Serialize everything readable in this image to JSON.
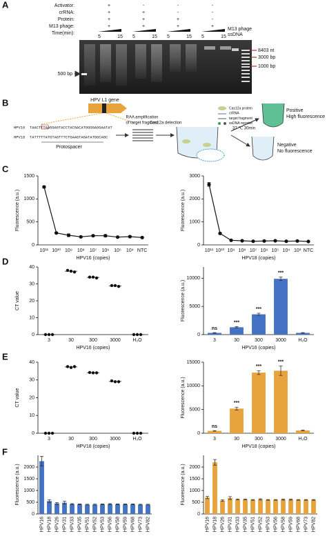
{
  "panel_labels": [
    "A",
    "B",
    "C",
    "D",
    "E",
    "F"
  ],
  "panel_a": {
    "row_labels": [
      "Activator:",
      "crRNA:",
      "Protein:",
      "M13 phage:",
      "Time(min):"
    ],
    "signs": [
      [
        "+",
        "-",
        "-",
        "-"
      ],
      [
        "+",
        "+",
        "-",
        "-"
      ],
      [
        "+",
        "+",
        "+",
        "-"
      ],
      [
        "+",
        "+",
        "+",
        "+"
      ]
    ],
    "times": [
      "5",
      "15"
    ],
    "ssdna_label": [
      "M13 phage",
      "ssDNA"
    ],
    "right_markers": [
      "8403 nt",
      "3000 bp",
      "1000 bp"
    ],
    "left_marker": "500 bp"
  },
  "panel_b": {
    "gene": "HPV L1 gene",
    "seq_names": [
      "HPV16",
      "HPV18"
    ],
    "seqs": [
      "TAACTTTAAGGAGTACCTACGACATGGGGAGGAATAT",
      "TATTTTTATGTAGTTTCTGAAGTAGATATGGCAGC"
    ],
    "protospacer": "Protospacer",
    "raa": [
      "RAA amplification",
      "of target fragment"
    ],
    "detection": "Cas12a detection",
    "legend": [
      "Cas12a protein",
      "crRNA",
      "target fragment",
      "ssDNA reporter"
    ],
    "condition": "37 ℃ 30min",
    "positive": [
      "Positive",
      "High fluorescence"
    ],
    "negative": [
      "Negative",
      "No fluorescence"
    ]
  },
  "chart_data": [
    {
      "type": "line",
      "xlabel": "HPV16 (copies)",
      "ylabel": "Fluorescence (a.u.)",
      "categories": [
        "10¹¹",
        "10¹⁰",
        "10⁹",
        "10⁸",
        "10⁷",
        "10⁶",
        "10⁵",
        "10⁴",
        "NTC"
      ],
      "values": [
        1260,
        260,
        210,
        175,
        200,
        200,
        170,
        180,
        160
      ],
      "errors": [
        20,
        15,
        30,
        10,
        15,
        25,
        10,
        15,
        10
      ],
      "color": "#111111",
      "ylim": [
        0,
        1500
      ],
      "yticks": [
        0,
        500,
        1000,
        1500
      ]
    },
    {
      "type": "line",
      "xlabel": "HPV18 (copies)",
      "ylabel": "Fluorescence (a.u.)",
      "categories": [
        "10¹¹",
        "10¹⁰",
        "10⁹",
        "10⁸",
        "10⁷",
        "10⁶",
        "10⁵",
        "10⁴",
        "10³",
        "NTC"
      ],
      "values": [
        2630,
        500,
        200,
        180,
        160,
        170,
        180,
        160,
        170,
        150
      ],
      "errors": [
        80,
        30,
        10,
        10,
        10,
        10,
        10,
        10,
        10,
        10
      ],
      "color": "#111111",
      "ylim": [
        0,
        3000
      ],
      "yticks": [
        0,
        1000,
        2000,
        3000
      ]
    },
    {
      "type": "dotplot",
      "xlabel": "HPV16 (copies)",
      "ylabel": "CT value",
      "categories": [
        "3",
        "30",
        "300",
        "3000",
        "H₂O"
      ],
      "values": [
        [
          0,
          0,
          0
        ],
        [
          38,
          37.5,
          37
        ],
        [
          34,
          34,
          33.5
        ],
        [
          29,
          29,
          28.5
        ],
        [
          0,
          0,
          0
        ]
      ],
      "color": "#111111",
      "ylim": [
        0,
        40
      ],
      "yticks": [
        0,
        10,
        20,
        30,
        40
      ]
    },
    {
      "type": "bar",
      "xlabel": "HPV16 (copies)",
      "ylabel": "Fluorescence (a.u.)",
      "categories": [
        "3",
        "30",
        "300",
        "3000",
        "H₂O"
      ],
      "values": [
        300,
        1300,
        3600,
        9900,
        300
      ],
      "errors": [
        50,
        100,
        200,
        300,
        50
      ],
      "annotations": [
        "ns",
        "***",
        "***",
        "***",
        null
      ],
      "color": "#4472c4",
      "ylim": [
        0,
        12000
      ],
      "yticks": [
        0,
        5000,
        10000
      ]
    },
    {
      "type": "dotplot",
      "xlabel": "HPV18 (copies)",
      "ylabel": "CT value",
      "categories": [
        "3",
        "30",
        "300",
        "3000",
        "H₂O"
      ],
      "values": [
        [
          0,
          0,
          0
        ],
        [
          37.5,
          37,
          37.5
        ],
        [
          34.2,
          34,
          34
        ],
        [
          29.5,
          29,
          29
        ],
        [
          0,
          0,
          0
        ]
      ],
      "color": "#111111",
      "ylim": [
        0,
        40
      ],
      "yticks": [
        0,
        10,
        20,
        30,
        40
      ]
    },
    {
      "type": "bar",
      "xlabel": "HPV18 (copies)",
      "ylabel": "Fluorescence (a.u.)",
      "categories": [
        "3",
        "30",
        "300",
        "3000",
        "H₂O"
      ],
      "values": [
        500,
        5200,
        12800,
        13200,
        600
      ],
      "errors": [
        50,
        300,
        400,
        1000,
        50
      ],
      "annotations": [
        "ns",
        "***",
        "***",
        "***",
        null
      ],
      "color": "#e8a33d",
      "ylim": [
        0,
        15000
      ],
      "yticks": [
        0,
        5000,
        10000,
        15000
      ]
    },
    {
      "type": "bar",
      "ylabel": "Fluorescence (a.u.)",
      "categories": [
        "HPV16",
        "HPV18",
        "HPV26",
        "HPV31",
        "HPV33",
        "HPV35",
        "HPV51",
        "HPV52",
        "HPV53",
        "HPV56",
        "HPV58",
        "HPV59",
        "HPV68",
        "HPV73",
        "HPV82"
      ],
      "values": [
        2250,
        550,
        450,
        480,
        420,
        410,
        400,
        400,
        410,
        420,
        410,
        410,
        410,
        400,
        400
      ],
      "errors": [
        200,
        60,
        40,
        60,
        20,
        15,
        15,
        20,
        15,
        20,
        15,
        15,
        15,
        15,
        15
      ],
      "color": "#4472c4",
      "ylim": [
        0,
        2500
      ],
      "yticks": [
        0,
        500,
        1000,
        1500,
        2000
      ]
    },
    {
      "type": "bar",
      "ylabel": "Fluorescence (a.u.)",
      "categories": [
        "HPV16",
        "HPV18",
        "HPV26",
        "HPV31",
        "HPV33",
        "HPV35",
        "HPV51",
        "HPV52",
        "HPV53",
        "HPV56",
        "HPV58",
        "HPV59",
        "HPV68",
        "HPV73",
        "HPV82"
      ],
      "values": [
        700,
        2200,
        570,
        680,
        620,
        620,
        600,
        620,
        600,
        600,
        610,
        610,
        600,
        600,
        600
      ],
      "errors": [
        50,
        120,
        30,
        60,
        20,
        20,
        15,
        25,
        15,
        15,
        20,
        20,
        15,
        15,
        15
      ],
      "color": "#e8a33d",
      "ylim": [
        0,
        2500
      ],
      "yticks": [
        0,
        500,
        1000,
        1500,
        2000
      ]
    }
  ]
}
